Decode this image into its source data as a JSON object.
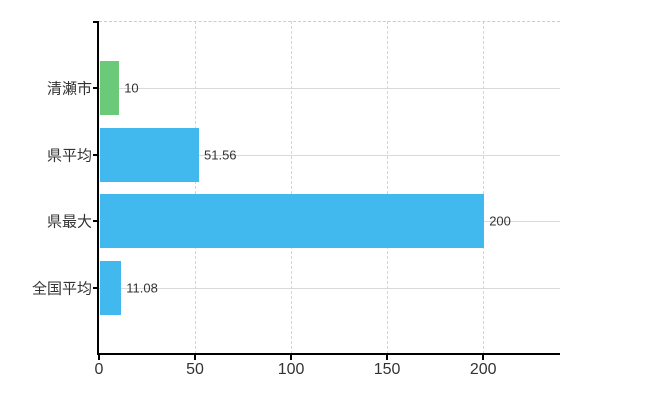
{
  "chart_data": {
    "type": "bar",
    "orientation": "horizontal",
    "categories": [
      "清瀬市",
      "県平均",
      "県最大",
      "全国平均"
    ],
    "values": [
      10,
      51.56,
      200,
      11.08
    ],
    "value_labels": [
      "10",
      "51.56",
      "200",
      "11.08"
    ],
    "bar_colors": [
      "#6bca79",
      "#41b9ee",
      "#41b9ee",
      "#41b9ee"
    ],
    "x_ticks": [
      0,
      50,
      100,
      150,
      200
    ],
    "x_tick_labels": [
      "0",
      "50",
      "100",
      "150",
      "200"
    ],
    "xlim": [
      0,
      240
    ],
    "grid": true,
    "legend": "none"
  },
  "colors": {
    "axis": "#000000",
    "grid_horizontal": "#d9d9d9",
    "grid_vertical": "#d4d4d4",
    "plot_top_border": "#cccccc",
    "label_text": "#333333",
    "background": "#ffffff",
    "bar_green": "#6bca79",
    "bar_blue": "#41b9ee"
  }
}
